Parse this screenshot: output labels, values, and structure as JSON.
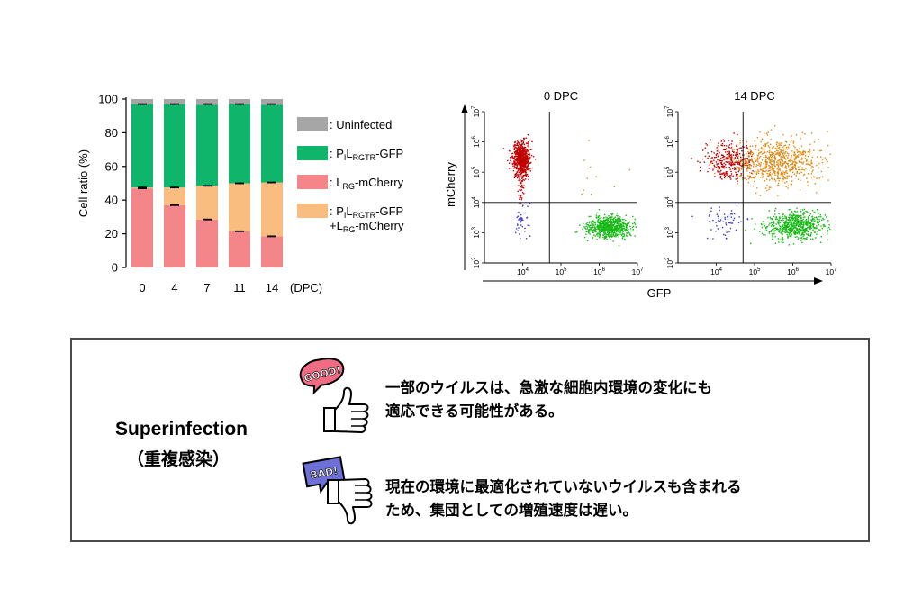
{
  "chart_data": [
    {
      "type": "bar",
      "stacked": true,
      "categories": [
        "0",
        "4",
        "7",
        "11",
        "14"
      ],
      "x_unit": "(DPC)",
      "ylabel": "Cell ratio (%)",
      "ylim": [
        0,
        100
      ],
      "yticks": [
        "0",
        "20",
        "40",
        "60",
        "80",
        "100"
      ],
      "series": [
        {
          "name": "L_RG-mCherry",
          "color": "#f4868a",
          "values": [
            47,
            37,
            28.5,
            21.5,
            18.5
          ]
        },
        {
          "name": "P_IL_RGTR-GFP+L_RG-mCherry",
          "color": "#f9be7f",
          "values": [
            0.5,
            10.5,
            20,
            28.5,
            32
          ]
        },
        {
          "name": "P_IL_RGTR-GFP",
          "color": "#0fb56a",
          "values": [
            49.5,
            49.5,
            48,
            47,
            46
          ]
        },
        {
          "name": "Uninfected",
          "color": "#a6a6a6",
          "values": [
            3,
            3,
            3.5,
            3,
            3.5
          ]
        }
      ],
      "error_bar_tops": [
        47.5,
        47.5,
        48.5,
        50,
        50.5
      ],
      "error_bars_mid": [
        47,
        37,
        28.5,
        21.5,
        18.5
      ],
      "legend": {
        "placement": "right",
        "items": [
          {
            "color": "#a6a6a6",
            "parts": [
              {
                "t": ": Uninfected"
              }
            ]
          },
          {
            "color": "#0fb56a",
            "parts": [
              {
                "t": ": P"
              },
              {
                "t": "I",
                "sub": true
              },
              {
                "t": "L"
              },
              {
                "t": "RGTR",
                "sub": true
              },
              {
                "t": "-GFP"
              }
            ]
          },
          {
            "color": "#f4868a",
            "parts": [
              {
                "t": ": L"
              },
              {
                "t": "RG",
                "sub": true
              },
              {
                "t": "-mCherry"
              }
            ]
          },
          {
            "color": "#f9be7f",
            "parts": [
              {
                "t": ": P"
              },
              {
                "t": "I",
                "sub": true
              },
              {
                "t": "L"
              },
              {
                "t": "RGTR",
                "sub": true
              },
              {
                "t": "-GFP"
              }
            ],
            "line2": [
              {
                "t": "+L"
              },
              {
                "t": "RG",
                "sub": true
              },
              {
                "t": "-mCherry"
              }
            ]
          }
        ]
      }
    },
    {
      "type": "scatter",
      "xlabel": "GFP",
      "ylabel": "mCherry",
      "log_scale": true,
      "xlim": [
        3,
        7
      ],
      "ylim": [
        2,
        7
      ],
      "x_ticks": [
        "10^4",
        "10^5",
        "10^6",
        "10^7"
      ],
      "y_ticks": [
        "10^2",
        "10^3",
        "10^4",
        "10^5",
        "10^6",
        "10^7"
      ],
      "gate": {
        "x": 4.7,
        "y": 4
      },
      "panels": [
        {
          "title": "0 DPC",
          "clusters": [
            {
              "color": "#c00000",
              "cx": 3.95,
              "cy": 5.45,
              "sx": 0.11,
              "sy": 0.28,
              "n": 650
            },
            {
              "color": "#c00000",
              "cx": 3.95,
              "cy": 4.6,
              "sx": 0.06,
              "sy": 0.25,
              "n": 40
            },
            {
              "color": "#3b3bd8",
              "cx": 3.95,
              "cy": 3.45,
              "sx": 0.09,
              "sy": 0.28,
              "n": 40
            },
            {
              "color": "#17b817",
              "cx": 6.25,
              "cy": 3.2,
              "sx": 0.28,
              "sy": 0.18,
              "n": 700
            },
            {
              "color": "#e08a10",
              "cx": 5.9,
              "cy": 5.0,
              "sx": 0.45,
              "sy": 0.5,
              "n": 10
            }
          ]
        },
        {
          "title": "14 DPC",
          "clusters": [
            {
              "color": "#c00000",
              "cx": 4.3,
              "cy": 5.4,
              "sx": 0.3,
              "sy": 0.32,
              "n": 300
            },
            {
              "color": "#e08a10",
              "cx": 5.6,
              "cy": 5.35,
              "sx": 0.55,
              "sy": 0.38,
              "n": 700
            },
            {
              "color": "#3b3bd8",
              "cx": 4.2,
              "cy": 3.4,
              "sx": 0.3,
              "sy": 0.25,
              "n": 60
            },
            {
              "color": "#17b817",
              "cx": 6.05,
              "cy": 3.25,
              "sx": 0.38,
              "sy": 0.22,
              "n": 650
            }
          ]
        }
      ]
    }
  ],
  "summary": {
    "title_en": "Superinfection",
    "title_jp": "（重複感染）",
    "good_label": "GOOD!",
    "good_color": "#f06b84",
    "good_lines": [
      "一部のウイルスは、急激な細胞内環境の変化にも",
      "適応できる可能性がある。"
    ],
    "bad_label": "BAD!",
    "bad_color": "#6f6fd8",
    "bad_lines": [
      "現在の環境に最適化されていないウイルスも含まれる",
      "ため、集団としての増殖速度は遅い。"
    ]
  }
}
